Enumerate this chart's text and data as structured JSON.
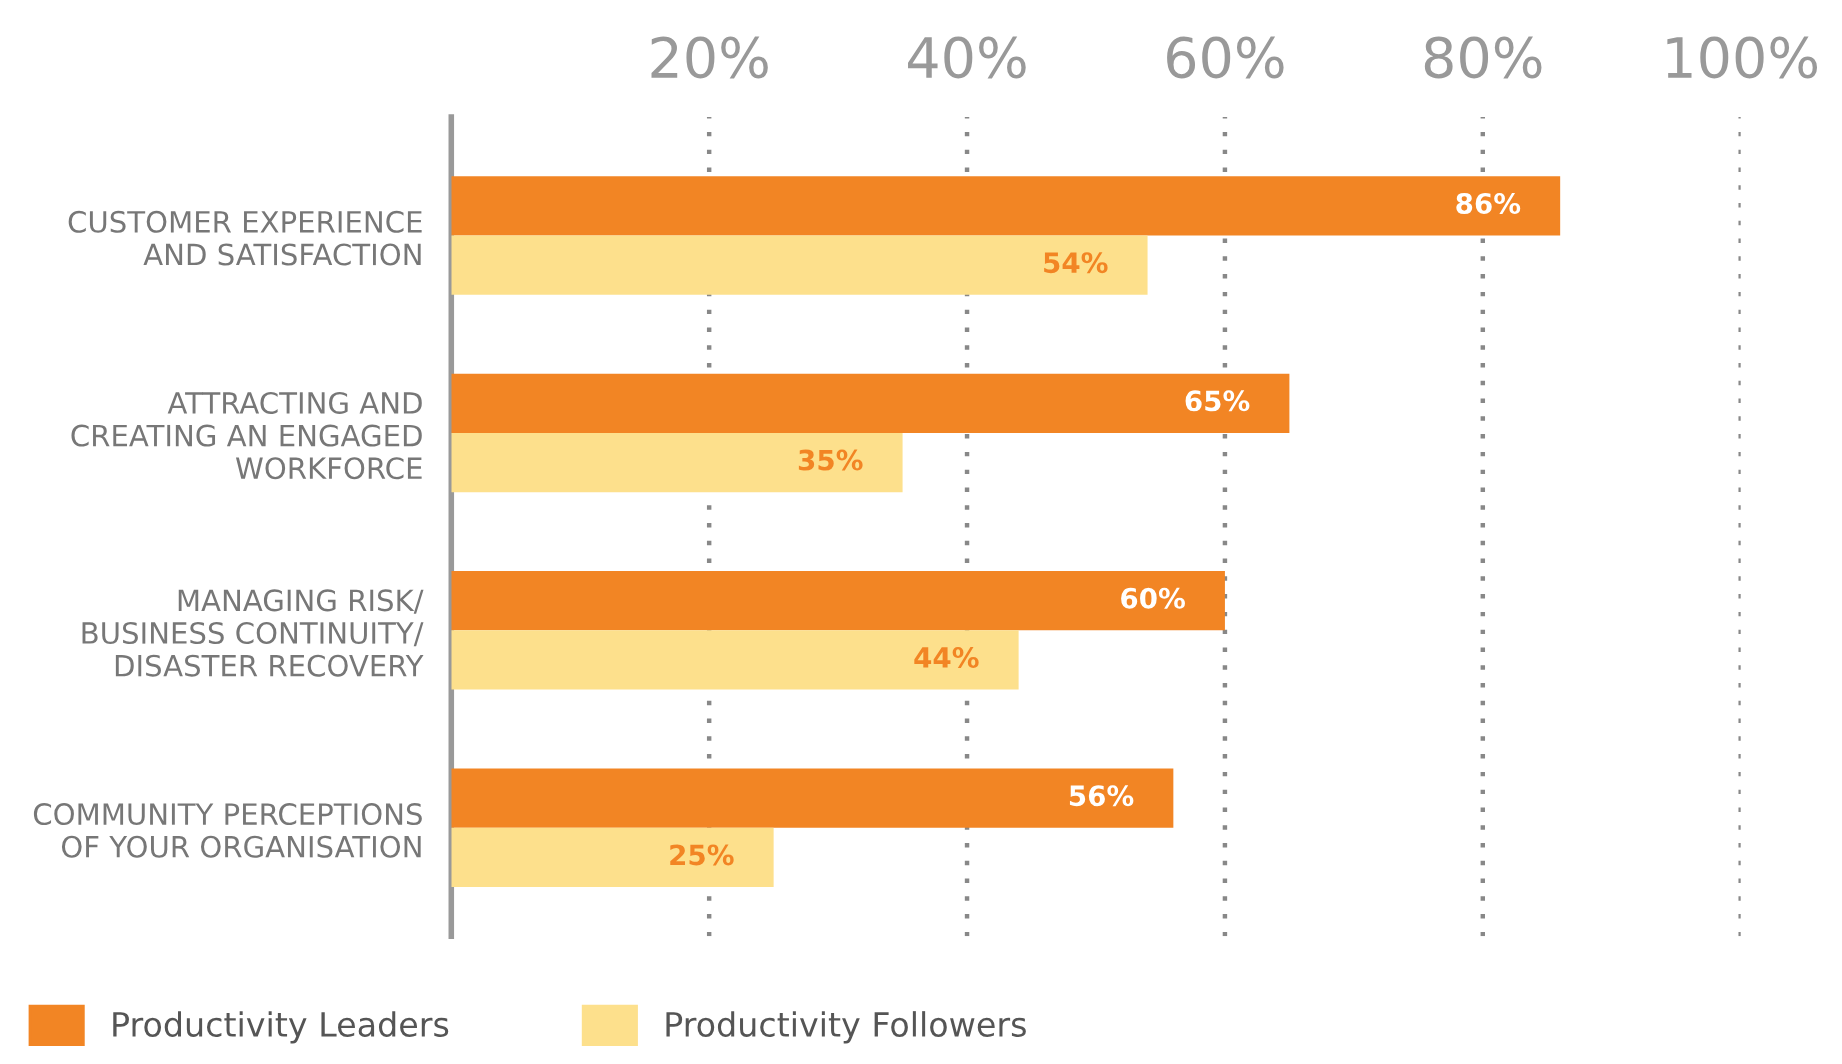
{
  "chart_data": {
    "type": "bar",
    "orientation": "horizontal",
    "categories": [
      "CUSTOMER EXPERIENCE\nAND SATISFACTION",
      "ATTRACTING AND\nCREATING AN ENGAGED\nWORKFORCE",
      "MANAGING RISK/\nBUSINESS CONTINUITY/\nDISASTER RECOVERY",
      "COMMUNITY PERCEPTIONS\nOF YOUR ORGANISATION"
    ],
    "series": [
      {
        "name": "Productivity Leaders",
        "color": "#f28524",
        "values": [
          86,
          65,
          60,
          56
        ],
        "value_labels": [
          "86%",
          "65%",
          "60%",
          "56%"
        ]
      },
      {
        "name": "Productivity Followers",
        "color": "#fde08c",
        "values": [
          54,
          35,
          44,
          25
        ],
        "value_labels": [
          "54%",
          "35%",
          "44%",
          "25%"
        ]
      }
    ],
    "xlim": [
      0,
      100
    ],
    "xticks": [
      {
        "value": 20,
        "label": "20%"
      },
      {
        "value": 40,
        "label": "40%"
      },
      {
        "value": 60,
        "label": "60%"
      },
      {
        "value": 80,
        "label": "80%"
      },
      {
        "value": 100,
        "label": "100%"
      }
    ],
    "grid": "x",
    "legend": "bottom left"
  }
}
